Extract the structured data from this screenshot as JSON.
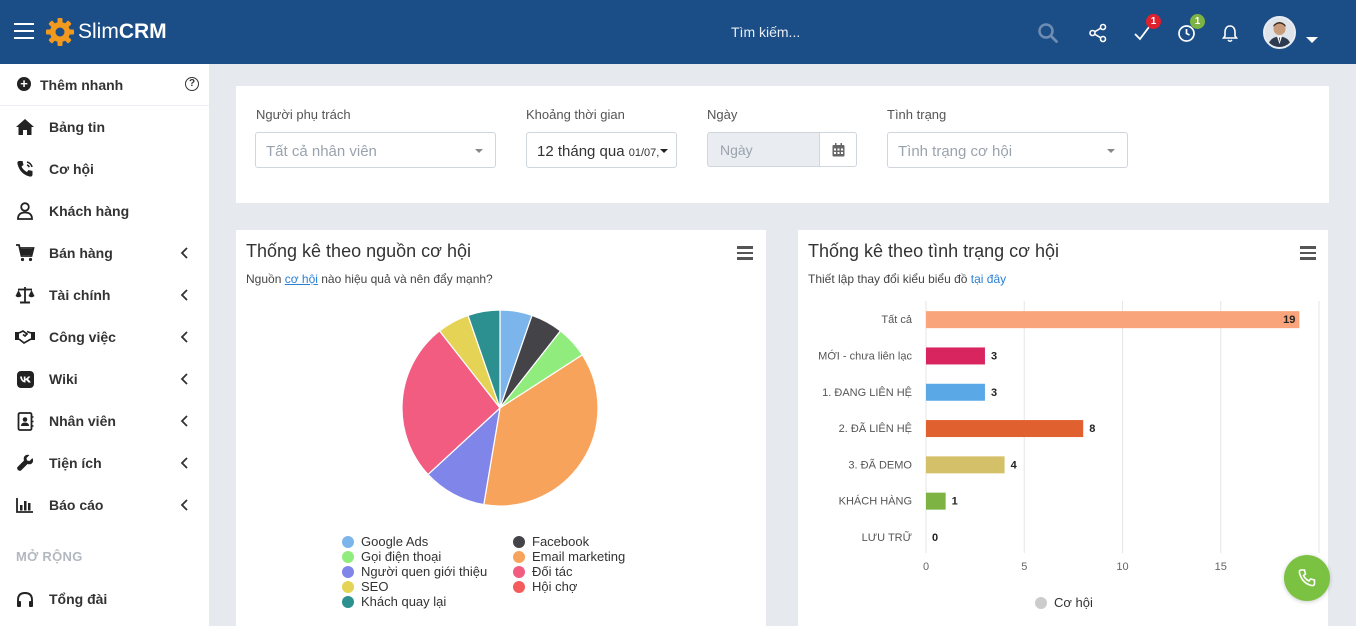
{
  "header": {
    "logo_text_light": "Slim",
    "logo_text_bold": "CRM",
    "search_placeholder": "Tìm kiếm...",
    "tasks_badge": "1",
    "timer_badge": "1"
  },
  "sidebar": {
    "quick_add": "Thêm nhanh",
    "items": [
      {
        "label": "Bảng tin",
        "icon": "home-icon"
      },
      {
        "label": "Cơ hội",
        "icon": "phone-volume-icon"
      },
      {
        "label": "Khách hàng",
        "icon": "user-icon"
      },
      {
        "label": "Bán hàng",
        "icon": "cart-icon"
      },
      {
        "label": "Tài chính",
        "icon": "scale-icon"
      },
      {
        "label": "Công việc",
        "icon": "handshake-icon"
      },
      {
        "label": "Wiki",
        "icon": "vk-icon"
      },
      {
        "label": "Nhân viên",
        "icon": "contact-book-icon"
      },
      {
        "label": "Tiện ích",
        "icon": "wrench-icon"
      },
      {
        "label": "Báo cáo",
        "icon": "bar-chart-icon"
      }
    ],
    "section_label": "MỞ RỘNG",
    "extra_item": "Tổng đài"
  },
  "filters": {
    "owner_label": "Người phụ trách",
    "owner_value": "Tất cả nhân viên",
    "period_label": "Khoảng thời gian",
    "period_value": "12 tháng qua",
    "period_suffix": "01/07,",
    "date_label": "Ngày",
    "date_placeholder": "Ngày",
    "status_label": "Tình trạng",
    "status_value": "Tình trạng cơ hội"
  },
  "source_card": {
    "title": "Thống kê theo nguồn cơ hội",
    "sub_before": "Nguồn ",
    "sub_link": "cơ hội",
    "sub_after": " nào hiệu quả và nên đẩy mạnh?"
  },
  "status_card": {
    "title": "Thống kê theo tình trạng cơ hội",
    "sub_before": "Thiết lập thay đổi kiểu biểu đồ ",
    "sub_link": "tại đây",
    "legend": "Cơ hội"
  },
  "chart_data": [
    {
      "type": "pie",
      "title": "Thống kê theo nguồn cơ hội",
      "categories": [
        "Google Ads",
        "Facebook",
        "Gọi điện thoại",
        "Email marketing",
        "Người quen giới thiệu",
        "Đối tác",
        "SEO",
        "Hội chợ",
        "Khách quay lại"
      ],
      "values": [
        5.3,
        5.3,
        5.3,
        36.8,
        10.5,
        26.3,
        5.3,
        0,
        5.3
      ],
      "colors": [
        "#7cb5ec",
        "#434348",
        "#90ed7d",
        "#f7a35c",
        "#8085e9",
        "#f15c80",
        "#e4d354",
        "#f45b5b",
        "#2b908f"
      ],
      "legend_position": "bottom"
    },
    {
      "type": "bar",
      "orientation": "horizontal",
      "title": "Thống kê theo tình trạng cơ hội",
      "categories": [
        "Tất cả",
        "MỚI - chưa liên lạc",
        "1. ĐANG LIÊN HỆ",
        "2. ĐÃ LIÊN HỆ",
        "3. ĐÃ DEMO",
        "KHÁCH HÀNG",
        "LƯU TRỮ"
      ],
      "series": [
        {
          "name": "Cơ hội",
          "values": [
            19,
            3,
            3,
            8,
            4,
            1,
            0
          ]
        }
      ],
      "colors": [
        "#f9a47a",
        "#d8245f",
        "#5aa9e6",
        "#e0612f",
        "#d5c06a",
        "#7cb342",
        "#999999"
      ],
      "xlim": [
        0,
        20
      ],
      "xticks": [
        0,
        5,
        10,
        15
      ],
      "grid": true,
      "legend_position": "bottom"
    }
  ]
}
